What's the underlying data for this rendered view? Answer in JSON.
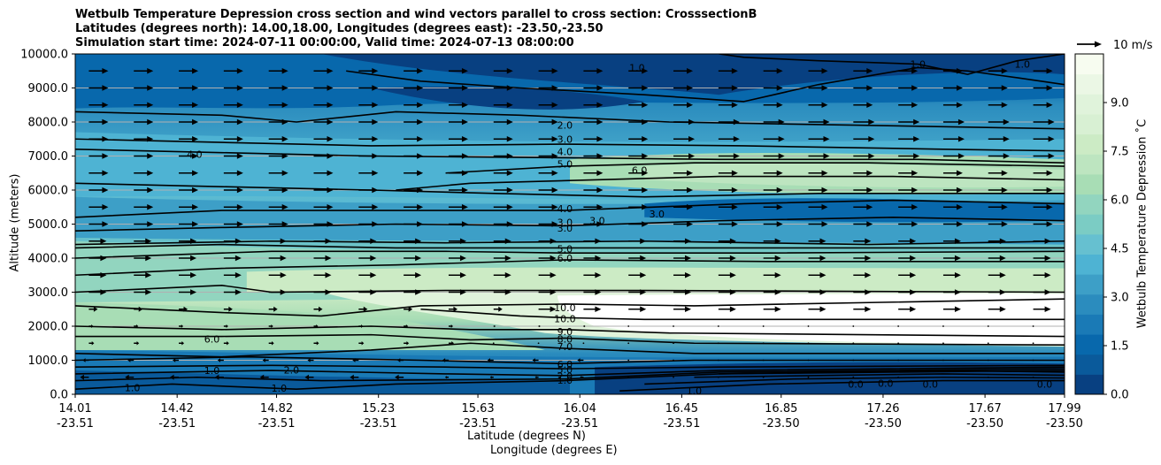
{
  "chart_data": {
    "type": "contourf",
    "title_lines": [
      "Wetbulb Temperature Depression cross section and wind vectors parallel to cross section: CrosssectionB",
      "Latitudes (degrees north): 14.00,18.00, Longitudes (degrees east): -23.50,-23.50",
      "Simulation start time: 2024-07-11 00:00:00, Valid time: 2024-07-13 08:00:00"
    ],
    "xlabel_lat": "Latitude (degrees N)",
    "xlabel_lon": "Longitude (degrees E)",
    "ylabel": "Altitude (meters)",
    "ylim": [
      0,
      10000
    ],
    "y_ticks": [
      "0.0",
      "1000.0",
      "2000.0",
      "3000.0",
      "4000.0",
      "5000.0",
      "6000.0",
      "7000.0",
      "8000.0",
      "9000.0",
      "10000.0"
    ],
    "x_ticks": [
      {
        "lat": "14.01",
        "lon": "-23.51"
      },
      {
        "lat": "14.42",
        "lon": "-23.51"
      },
      {
        "lat": "14.82",
        "lon": "-23.51"
      },
      {
        "lat": "15.23",
        "lon": "-23.51"
      },
      {
        "lat": "15.63",
        "lon": "-23.51"
      },
      {
        "lat": "16.04",
        "lon": "-23.51"
      },
      {
        "lat": "16.45",
        "lon": "-23.51"
      },
      {
        "lat": "16.85",
        "lon": "-23.50"
      },
      {
        "lat": "17.26",
        "lon": "-23.50"
      },
      {
        "lat": "17.67",
        "lon": "-23.50"
      },
      {
        "lat": "17.99",
        "lon": "-23.50"
      }
    ],
    "colorbar": {
      "label": "Wetbulb Temperature Depression $^\\circ$C",
      "label_display": "Wetbulb Temperature Depression ˚C",
      "range": [
        0,
        10.5
      ],
      "ticks": [
        "0.0",
        "1.5",
        "3.0",
        "4.5",
        "6.0",
        "7.5",
        "9.0"
      ],
      "colors": [
        "#084081",
        "#0a5a9b",
        "#0868ac",
        "#1a7ab6",
        "#2b8cbe",
        "#3d9fc7",
        "#4eb3d3",
        "#66c0d0",
        "#7bccc4",
        "#92d5bf",
        "#a8ddb5",
        "#bde5c0",
        "#ccebc5",
        "#d8f0d3",
        "#e0f3db",
        "#ebf7e5",
        "#f7fcf0"
      ]
    },
    "wind_reference": {
      "label": "10 m/s",
      "speed": 10
    },
    "contour_labels": [
      {
        "text": "2.0",
        "x": 15.98,
        "y": 7910
      },
      {
        "text": "3.0",
        "x": 15.98,
        "y": 7490
      },
      {
        "text": "4.0",
        "x": 15.98,
        "y": 7130
      },
      {
        "text": "5.0",
        "x": 15.98,
        "y": 6770
      },
      {
        "text": "4.0",
        "x": 14.49,
        "y": 7050
      },
      {
        "text": "6.0",
        "x": 16.28,
        "y": 6580
      },
      {
        "text": "1.0",
        "x": 16.27,
        "y": 9600
      },
      {
        "text": "1.0",
        "x": 17.4,
        "y": 9700
      },
      {
        "text": "1.0",
        "x": 17.82,
        "y": 9700
      },
      {
        "text": "4.0",
        "x": 15.98,
        "y": 5450
      },
      {
        "text": "3.0",
        "x": 15.98,
        "y": 5050
      },
      {
        "text": "3.0",
        "x": 15.98,
        "y": 4880
      },
      {
        "text": "3.0",
        "x": 16.11,
        "y": 5100
      },
      {
        "text": "3.0",
        "x": 16.35,
        "y": 5300
      },
      {
        "text": "5.0",
        "x": 15.98,
        "y": 4270
      },
      {
        "text": "6.0",
        "x": 15.98,
        "y": 4000
      },
      {
        "text": "10.0",
        "x": 15.98,
        "y": 2550
      },
      {
        "text": "10.0",
        "x": 15.98,
        "y": 2220
      },
      {
        "text": "9.0",
        "x": 15.98,
        "y": 1850
      },
      {
        "text": "8.0",
        "x": 15.98,
        "y": 1620
      },
      {
        "text": "7.0",
        "x": 15.98,
        "y": 1400
      },
      {
        "text": "6.0",
        "x": 15.98,
        "y": 880
      },
      {
        "text": "5.0",
        "x": 15.98,
        "y": 730
      },
      {
        "text": "2.0",
        "x": 15.98,
        "y": 530
      },
      {
        "text": "1.0",
        "x": 15.98,
        "y": 420
      },
      {
        "text": "6.0",
        "x": 14.56,
        "y": 1620
      },
      {
        "text": "1.0",
        "x": 14.56,
        "y": 700
      },
      {
        "text": "2.0",
        "x": 14.88,
        "y": 720
      },
      {
        "text": "1.0",
        "x": 14.83,
        "y": 180
      },
      {
        "text": "1.0",
        "x": 14.24,
        "y": 200
      },
      {
        "text": "1.0",
        "x": 16.5,
        "y": 100
      },
      {
        "text": "0.0",
        "x": 17.15,
        "y": 300
      },
      {
        "text": "0.0",
        "x": 17.27,
        "y": 320
      },
      {
        "text": "0.0",
        "x": 17.45,
        "y": 300
      },
      {
        "text": "0.0",
        "x": 17.91,
        "y": 300
      }
    ],
    "wind_field": {
      "description": "vectors parallel to cross section; strong westerly (rightward) above ~2500 m, weak below, easterly (leftward) near 1000 m",
      "levels_m": [
        9500,
        9000,
        8500,
        8000,
        7500,
        7000,
        6500,
        6000,
        5500,
        5000,
        4500,
        4000,
        3500,
        3000,
        2500,
        2000,
        1500,
        1000,
        500
      ]
    }
  }
}
